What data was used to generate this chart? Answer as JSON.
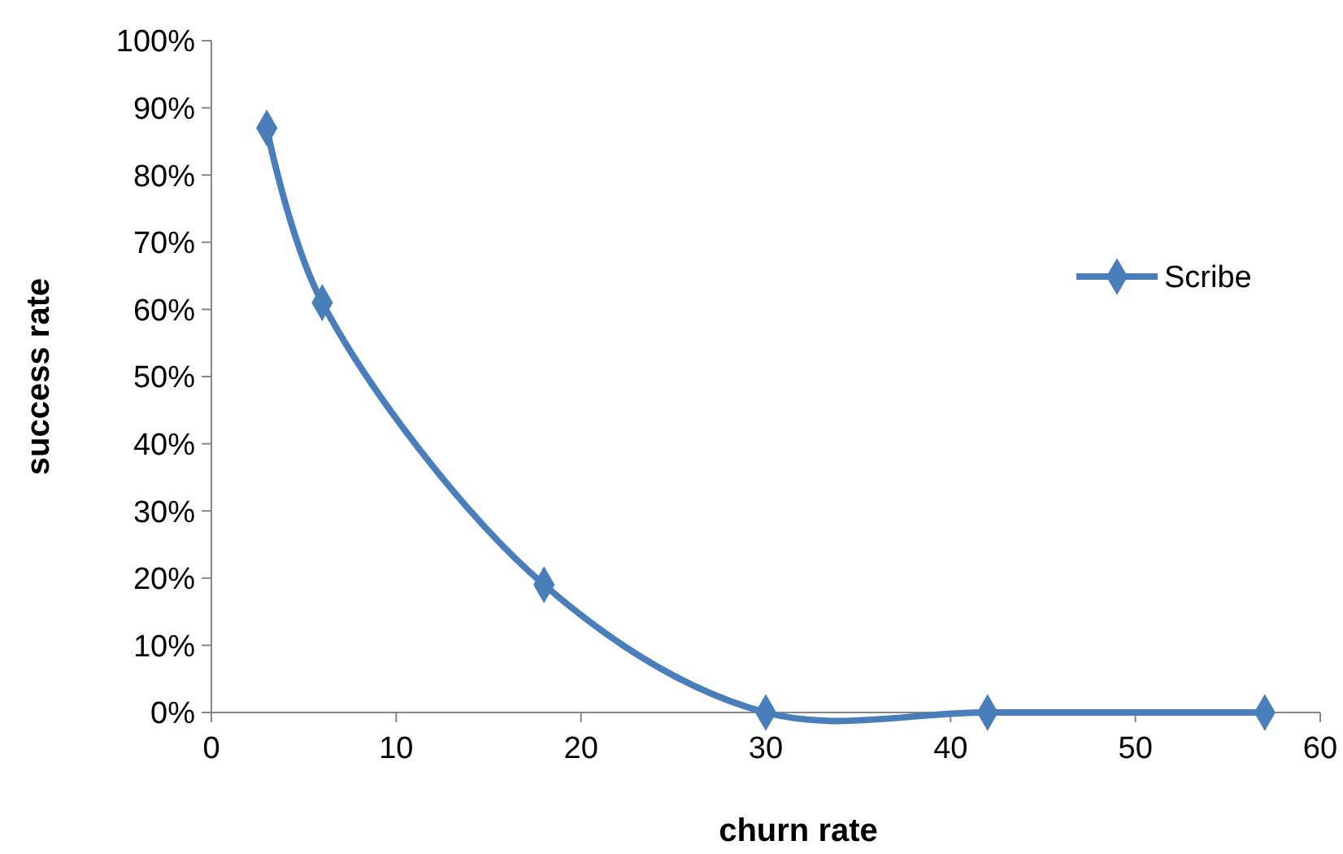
{
  "chart_data": {
    "type": "line",
    "xlabel": "churn rate",
    "ylabel": "success rate",
    "x": [
      3,
      6,
      18,
      30,
      42,
      57
    ],
    "series": [
      {
        "name": "Scribe",
        "color": "#4a7ebb",
        "values": [
          87,
          61,
          19,
          0,
          0,
          0
        ]
      }
    ],
    "xlim": [
      0,
      60
    ],
    "xticks": [
      0,
      10,
      20,
      30,
      40,
      50,
      60
    ],
    "ylim": [
      0,
      100
    ],
    "yticks": [
      {
        "value": 0,
        "label": "0%"
      },
      {
        "value": 10,
        "label": "10%"
      },
      {
        "value": 20,
        "label": "20%"
      },
      {
        "value": 30,
        "label": "30%"
      },
      {
        "value": 40,
        "label": "40%"
      },
      {
        "value": 50,
        "label": "50%"
      },
      {
        "value": 60,
        "label": "60%"
      },
      {
        "value": 70,
        "label": "70%"
      },
      {
        "value": 80,
        "label": "80%"
      },
      {
        "value": 90,
        "label": "90%"
      },
      {
        "value": 100,
        "label": "100%"
      }
    ],
    "marker": "diamond",
    "line_style": "solid",
    "legend": "right",
    "grid": false
  }
}
